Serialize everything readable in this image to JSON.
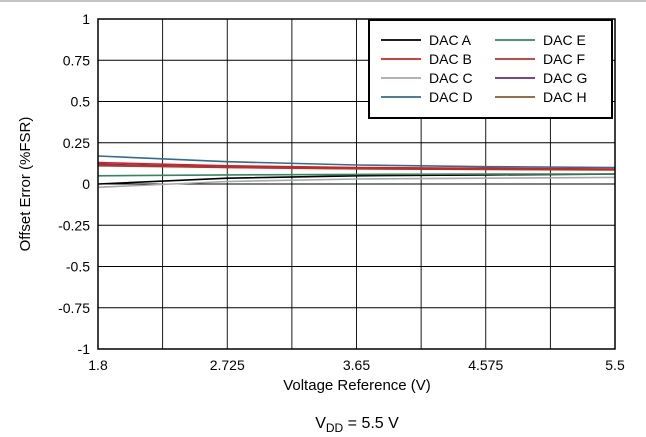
{
  "chart_data": {
    "type": "line",
    "xlabel": "Voltage Reference (V)",
    "ylabel": "Offset Error (%FSR)",
    "xlim": [
      1.8,
      5.5
    ],
    "ylim": [
      -1,
      1
    ],
    "xticks": [
      1.8,
      2.725,
      3.65,
      4.575,
      5.5
    ],
    "xtick_labels": [
      "1.8",
      "2.725",
      "3.65",
      "4.575",
      "5.5"
    ],
    "yticks": [
      1,
      0.75,
      0.5,
      0.25,
      0,
      -0.25,
      -0.5,
      -0.75,
      -1
    ],
    "ytick_labels": [
      "1",
      "0.75",
      "0.5",
      "0.25",
      "0",
      "-0.25",
      "-0.5",
      "-0.75",
      "-1"
    ],
    "grid": true,
    "legend_position": "top-right",
    "x": [
      1.8,
      2.725,
      3.65,
      4.575,
      5.5
    ],
    "series": [
      {
        "name": "DAC A",
        "color": "#000000",
        "values": [
          0.0,
          0.035,
          0.05,
          0.055,
          0.06
        ]
      },
      {
        "name": "DAC B",
        "color": "#d42020",
        "values": [
          0.13,
          0.11,
          0.1,
          0.095,
          0.09
        ]
      },
      {
        "name": "DAC C",
        "color": "#a8a8a8",
        "values": [
          -0.02,
          0.015,
          0.03,
          0.035,
          0.04
        ]
      },
      {
        "name": "DAC D",
        "color": "#2e6e8e",
        "values": [
          0.17,
          0.135,
          0.115,
          0.105,
          0.1
        ]
      },
      {
        "name": "DAC E",
        "color": "#2f8a5e",
        "values": [
          0.05,
          0.055,
          0.058,
          0.06,
          0.06
        ]
      },
      {
        "name": "DAC F",
        "color": "#b83232",
        "values": [
          0.115,
          0.1,
          0.092,
          0.088,
          0.085
        ]
      },
      {
        "name": "DAC G",
        "color": "#6a2a7a",
        "values": [
          0.12,
          0.102,
          0.094,
          0.09,
          0.088
        ]
      },
      {
        "name": "DAC H",
        "color": "#8a5a2b",
        "values": [
          0.11,
          0.1,
          0.093,
          0.09,
          0.088
        ]
      }
    ]
  },
  "caption": {
    "main": "V",
    "sub": "DD",
    "rest": " = 5.5 V"
  }
}
